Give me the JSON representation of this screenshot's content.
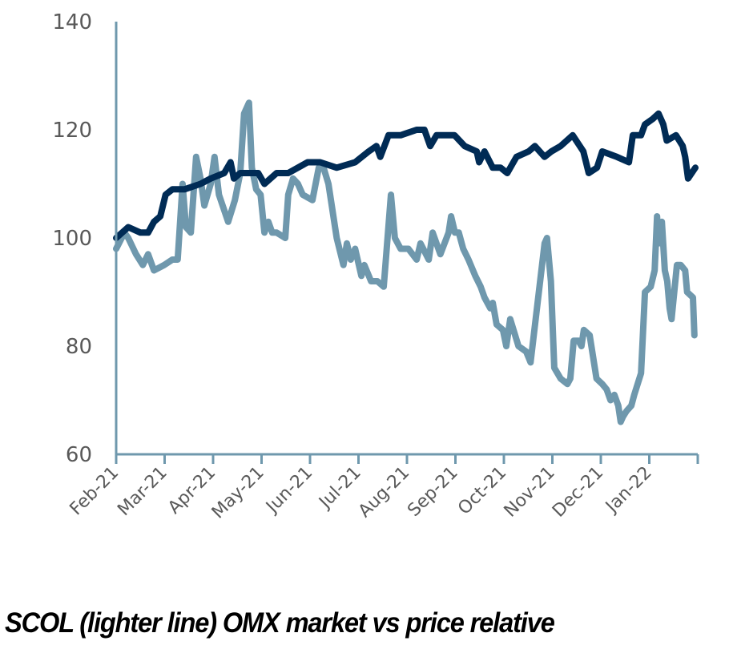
{
  "chart_data": {
    "type": "line",
    "title": "SCOL (lighter line) OMX market vs price relative",
    "xlabel": "",
    "ylabel": "",
    "ylim": [
      60,
      140
    ],
    "yticks": [
      60,
      80,
      100,
      120,
      140
    ],
    "ytick_labels": [
      "60",
      "80",
      "100",
      "120",
      "140"
    ],
    "x_unit": "months since Feb-21",
    "xlim": [
      0,
      12
    ],
    "xtick_labels": [
      "Feb-21",
      "Mar-21",
      "Apr-21",
      "May-21",
      "Jun-21",
      "Jul-21",
      "Aug-21",
      "Sep-21",
      "Oct-21",
      "Nov-21",
      "Dec-21",
      "Jan-22"
    ],
    "grid": false,
    "legend": "none",
    "series": [
      {
        "name": "OMX market",
        "color": "#002b55",
        "x": [
          0,
          0.25,
          0.5,
          0.66,
          0.78,
          0.91,
          1.02,
          1.16,
          1.41,
          1.74,
          1.95,
          2.23,
          2.36,
          2.43,
          2.56,
          2.73,
          2.93,
          3.06,
          3.31,
          3.55,
          3.95,
          4.21,
          4.55,
          4.93,
          5.21,
          5.37,
          5.45,
          5.62,
          5.87,
          6.2,
          6.36,
          6.48,
          6.61,
          6.86,
          6.98,
          7.19,
          7.44,
          7.49,
          7.6,
          7.77,
          7.93,
          8.07,
          8.26,
          8.51,
          8.64,
          8.84,
          8.98,
          9.17,
          9.42,
          9.64,
          9.75,
          9.92,
          10.03,
          10.33,
          10.58,
          10.66,
          10.83,
          10.91,
          11.07,
          11.19,
          11.29,
          11.36,
          11.55,
          11.69,
          11.74,
          11.8,
          11.95
        ],
        "values": [
          100,
          102,
          101,
          101,
          103,
          104,
          108,
          109,
          109,
          110,
          111,
          112,
          114,
          111,
          112,
          112,
          112,
          110,
          112,
          112,
          114,
          114,
          113,
          114,
          116,
          117,
          115,
          119,
          119,
          120,
          120,
          117,
          119,
          119,
          119,
          117,
          116,
          114,
          116,
          113,
          113,
          112,
          115,
          116,
          117,
          115,
          116,
          117,
          119,
          116,
          112,
          113,
          116,
          115,
          114,
          119,
          119,
          121,
          122,
          123,
          121,
          118,
          119,
          117,
          115,
          111,
          113
        ]
      },
      {
        "name": "SCOL",
        "color": "#6f98ad",
        "x": [
          0,
          0.17,
          0.25,
          0.41,
          0.55,
          0.66,
          0.78,
          0.99,
          1.16,
          1.27,
          1.37,
          1.44,
          1.54,
          1.65,
          1.74,
          1.82,
          1.95,
          2.03,
          2.12,
          2.31,
          2.45,
          2.56,
          2.64,
          2.74,
          2.8,
          2.89,
          2.98,
          3.06,
          3.14,
          3.22,
          3.31,
          3.49,
          3.55,
          3.65,
          3.75,
          3.85,
          4.05,
          4.18,
          4.28,
          4.38,
          4.55,
          4.69,
          4.76,
          4.84,
          4.93,
          5.06,
          5.12,
          5.26,
          5.39,
          5.52,
          5.67,
          5.75,
          5.87,
          6.03,
          6.2,
          6.28,
          6.45,
          6.53,
          6.69,
          6.86,
          6.91,
          6.99,
          7.07,
          7.16,
          7.27,
          7.41,
          7.52,
          7.6,
          7.72,
          7.77,
          7.85,
          7.98,
          8.05,
          8.13,
          8.3,
          8.46,
          8.55,
          8.84,
          8.89,
          8.97,
          9.04,
          9.17,
          9.31,
          9.37,
          9.44,
          9.54,
          9.6,
          9.65,
          9.77,
          9.91,
          10.03,
          10.12,
          10.2,
          10.28,
          10.36,
          10.41,
          10.46,
          10.53,
          10.63,
          10.69,
          10.83,
          10.91,
          11.03,
          11.11,
          11.16,
          11.19,
          11.26,
          11.32,
          11.37,
          11.42,
          11.46,
          11.57,
          11.65,
          11.74,
          11.78,
          11.9,
          11.93
        ],
        "values": [
          98,
          101,
          100,
          97,
          95,
          97,
          94,
          95,
          96,
          96,
          110,
          102,
          101,
          115,
          111,
          106,
          110,
          115,
          108,
          103,
          107,
          112,
          123,
          125,
          113,
          109,
          108,
          101,
          103,
          101,
          101,
          100,
          108,
          111,
          110,
          108,
          107,
          113,
          113,
          110,
          100,
          95,
          99,
          96,
          98,
          93,
          95,
          92,
          92,
          91,
          108,
          100,
          98,
          98,
          96,
          99,
          96,
          101,
          97,
          101,
          104,
          101,
          101,
          98,
          96,
          93,
          91,
          89,
          87,
          88,
          84,
          83,
          80,
          85,
          80,
          79,
          77,
          99,
          100,
          92,
          76,
          74,
          73,
          74,
          81,
          81,
          80,
          83,
          82,
          74,
          73,
          72,
          70,
          71,
          69,
          66,
          67,
          68,
          69,
          71,
          75,
          90,
          91,
          94,
          104,
          99,
          103,
          94,
          92,
          87,
          85,
          95,
          95,
          94,
          90,
          89,
          82
        ]
      }
    ]
  }
}
